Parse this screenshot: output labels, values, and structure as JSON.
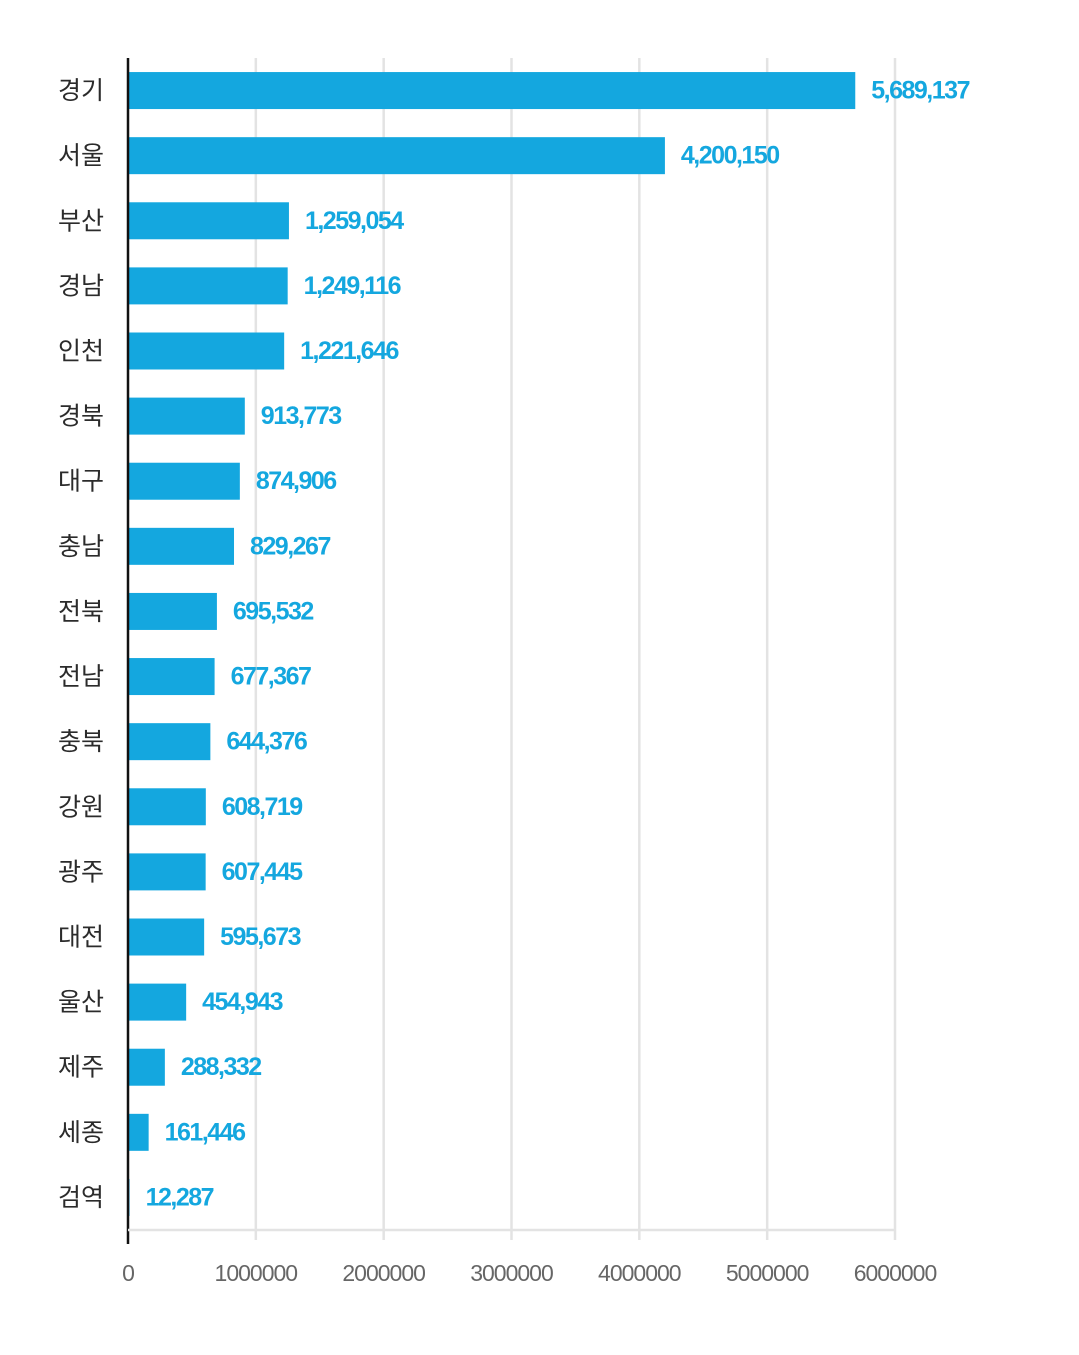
{
  "chart_data": {
    "type": "bar",
    "orientation": "horizontal",
    "title": "",
    "xlabel": "",
    "ylabel": "",
    "categories": [
      "경기",
      "서울",
      "부산",
      "경남",
      "인천",
      "경북",
      "대구",
      "충남",
      "전북",
      "전남",
      "충북",
      "강원",
      "광주",
      "대전",
      "울산",
      "제주",
      "세종",
      "검역"
    ],
    "values": [
      5689137,
      4200150,
      1259054,
      1249116,
      1221646,
      913773,
      874906,
      829267,
      695532,
      677367,
      644376,
      608719,
      607445,
      595673,
      454943,
      288332,
      161446,
      12287
    ],
    "value_labels": [
      "5,689,137",
      "4,200,150",
      "1,259,054",
      "1,249,116",
      "1,221,646",
      "913,773",
      "874,906",
      "829,267",
      "695,532",
      "677,367",
      "644,376",
      "608,719",
      "607,445",
      "595,673",
      "454,943",
      "288,332",
      "161,446",
      "12,287"
    ],
    "xlim": [
      0,
      6000000
    ],
    "x_ticks": [
      0,
      1000000,
      2000000,
      3000000,
      4000000,
      5000000,
      6000000
    ],
    "x_tick_labels": [
      "0",
      "1000000",
      "2000000",
      "3000000",
      "4000000",
      "5000000",
      "6000000"
    ],
    "grid": true,
    "legend": "none",
    "bar_color": "#14a7df",
    "label_color": "#14a7df",
    "grid_color": "#e3e3e3",
    "axis_color": "#111111"
  }
}
